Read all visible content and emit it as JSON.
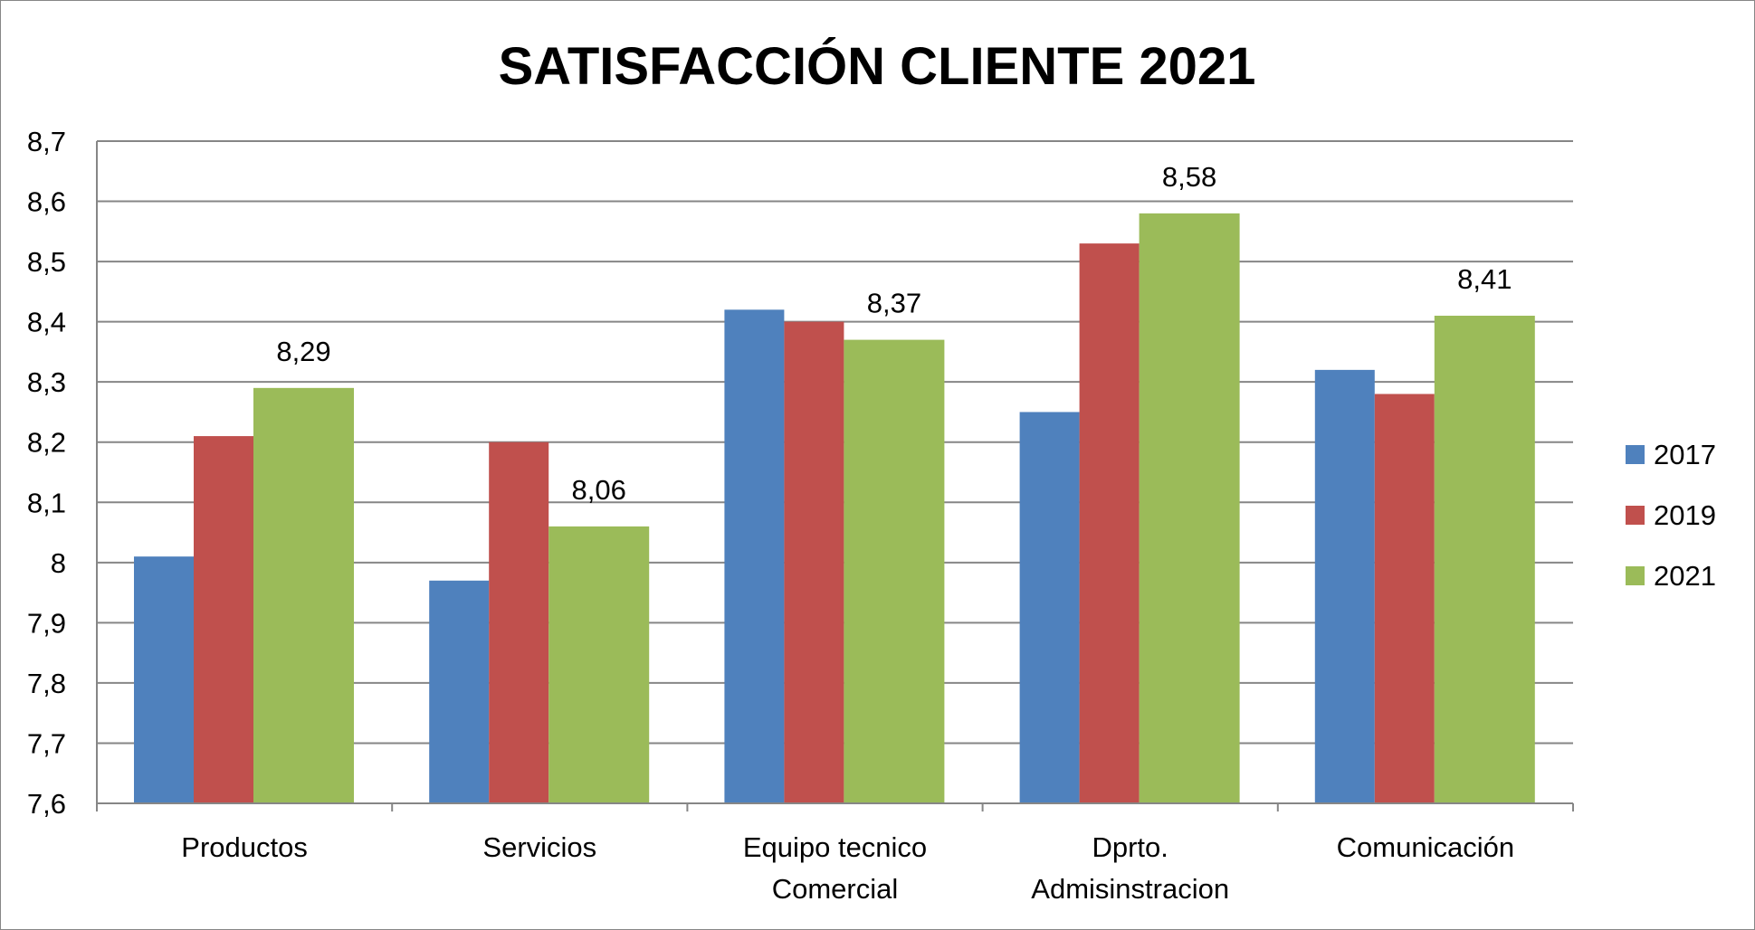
{
  "chart_data": {
    "type": "bar",
    "title": "SATISFACCIÓN CLIENTE 2021",
    "categories": [
      [
        "Productos"
      ],
      [
        "Servicios"
      ],
      [
        "Equipo tecnico",
        "Comercial"
      ],
      [
        "Dprto.",
        "Admisinstracion"
      ],
      [
        "Comunicación"
      ]
    ],
    "series": [
      {
        "name": "2017",
        "color": "#4f81bd",
        "values": [
          8.01,
          7.97,
          8.42,
          8.25,
          8.32
        ]
      },
      {
        "name": "2019",
        "color": "#c0504d",
        "values": [
          8.21,
          8.2,
          8.4,
          8.53,
          8.28
        ]
      },
      {
        "name": "2021",
        "color": "#9bbb59",
        "values": [
          8.29,
          8.06,
          8.37,
          8.58,
          8.41
        ]
      }
    ],
    "data_labels": {
      "series": "2021",
      "labels": [
        "8,29",
        "8,06",
        "8,37",
        "8,58",
        "8,41"
      ]
    },
    "ylim": [
      7.6,
      8.7
    ],
    "yticks": [
      "7,6",
      "7,7",
      "7,8",
      "7,9",
      "8",
      "8,1",
      "8,2",
      "8,3",
      "8,4",
      "8,5",
      "8,6",
      "8,7"
    ],
    "grid": true,
    "gridline_color": "#868686",
    "legend_position": "right",
    "xlabel": "",
    "ylabel": ""
  }
}
